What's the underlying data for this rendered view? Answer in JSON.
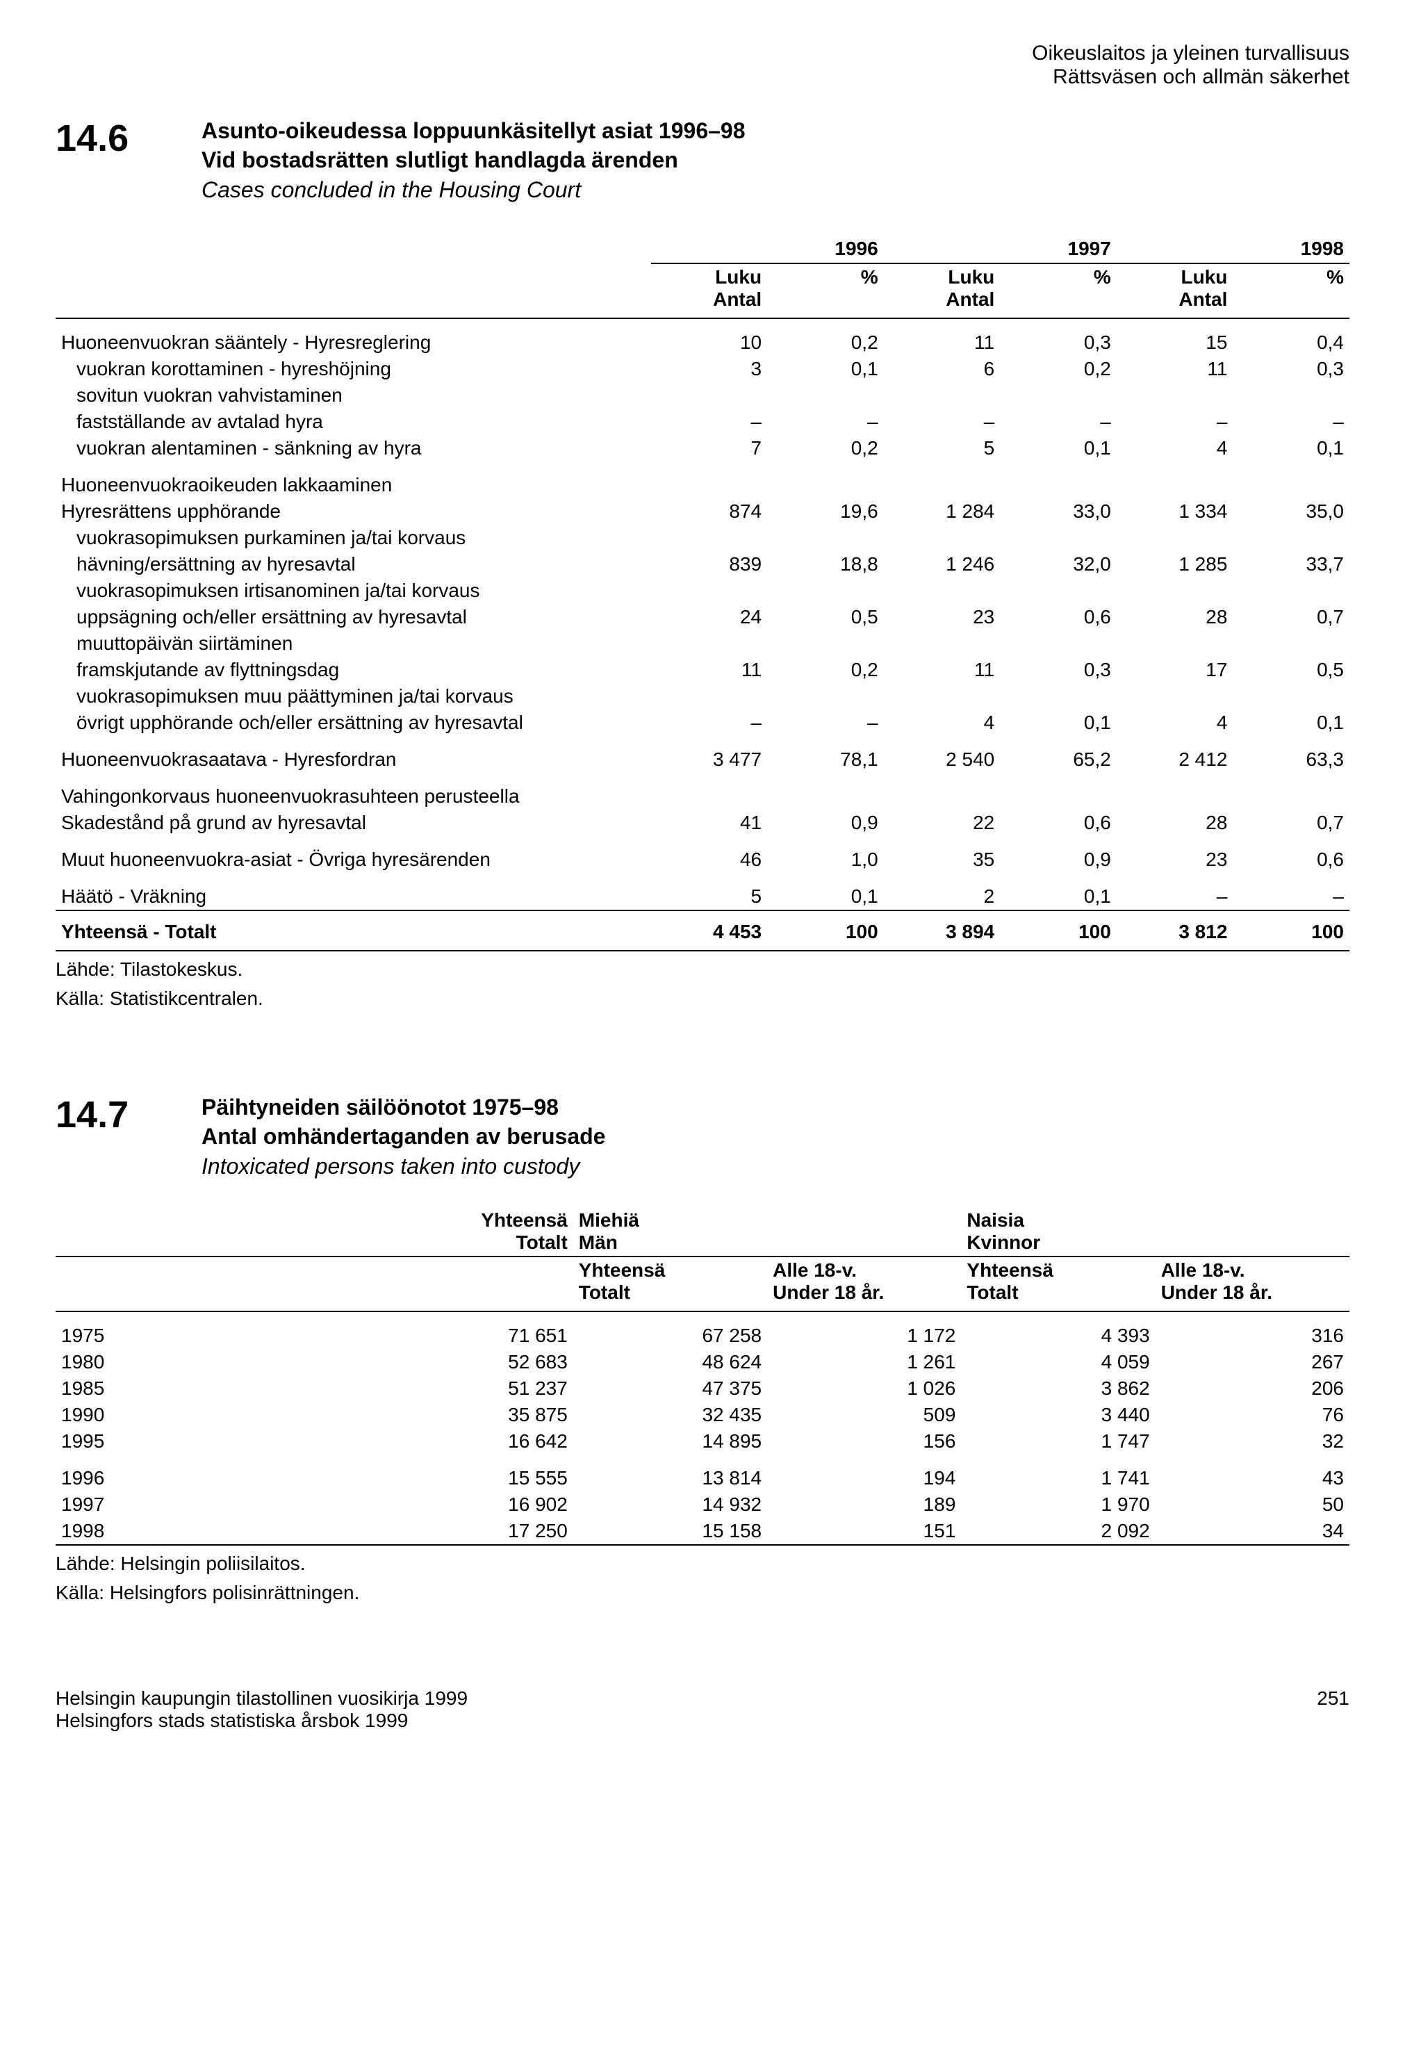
{
  "page_header": {
    "line1": "Oikeuslaitos ja yleinen turvallisuus",
    "line2": "Rättsväsen och allmän säkerhet"
  },
  "section_14_6": {
    "number": "14.6",
    "title_fi": "Asunto-oikeudessa loppuunkäsitellyt asiat 1996–98",
    "title_sv": "Vid bostadsrätten slutligt handlagda ärenden",
    "title_en": "Cases concluded in the Housing Court",
    "years": [
      "1996",
      "1997",
      "1998"
    ],
    "col_luku": "Luku",
    "col_antal": "Antal",
    "col_pct": "%",
    "rows": [
      {
        "label": "Huoneenvuokran sääntely - Hyresreglering",
        "indent": false,
        "v": [
          "10",
          "0,2",
          "11",
          "0,3",
          "15",
          "0,4"
        ],
        "group_top": true
      },
      {
        "label": "vuokran korottaminen - hyreshöjning",
        "indent": true,
        "v": [
          "3",
          "0,1",
          "6",
          "0,2",
          "11",
          "0,3"
        ]
      },
      {
        "label": "sovitun vuokran vahvistaminen",
        "indent": true,
        "v": [
          "",
          "",
          "",
          "",
          "",
          ""
        ]
      },
      {
        "label": "fastställande av avtalad hyra",
        "indent": true,
        "v": [
          "–",
          "–",
          "–",
          "–",
          "–",
          "–"
        ]
      },
      {
        "label": "vuokran alentaminen - sänkning av hyra",
        "indent": true,
        "v": [
          "7",
          "0,2",
          "5",
          "0,1",
          "4",
          "0,1"
        ]
      },
      {
        "label": "Huoneenvuokraoikeuden lakkaaminen",
        "indent": false,
        "v": [
          "",
          "",
          "",
          "",
          "",
          ""
        ],
        "group_top": true
      },
      {
        "label": "Hyresrättens upphörande",
        "indent": false,
        "v": [
          "874",
          "19,6",
          "1 284",
          "33,0",
          "1 334",
          "35,0"
        ]
      },
      {
        "label": "vuokrasopimuksen purkaminen ja/tai korvaus",
        "indent": true,
        "v": [
          "",
          "",
          "",
          "",
          "",
          ""
        ]
      },
      {
        "label": "hävning/ersättning av hyresavtal",
        "indent": true,
        "v": [
          "839",
          "18,8",
          "1 246",
          "32,0",
          "1 285",
          "33,7"
        ]
      },
      {
        "label": "vuokrasopimuksen irtisanominen ja/tai korvaus",
        "indent": true,
        "v": [
          "",
          "",
          "",
          "",
          "",
          ""
        ]
      },
      {
        "label": "uppsägning och/eller ersättning av hyresavtal",
        "indent": true,
        "v": [
          "24",
          "0,5",
          "23",
          "0,6",
          "28",
          "0,7"
        ]
      },
      {
        "label": "muuttopäivän siirtäminen",
        "indent": true,
        "v": [
          "",
          "",
          "",
          "",
          "",
          ""
        ]
      },
      {
        "label": "framskjutande av flyttningsdag",
        "indent": true,
        "v": [
          "11",
          "0,2",
          "11",
          "0,3",
          "17",
          "0,5"
        ]
      },
      {
        "label": "vuokrasopimuksen muu päättyminen ja/tai korvaus",
        "indent": true,
        "v": [
          "",
          "",
          "",
          "",
          "",
          ""
        ]
      },
      {
        "label": "övrigt upphörande och/eller ersättning av hyresavtal",
        "indent": true,
        "v": [
          "–",
          "–",
          "4",
          "0,1",
          "4",
          "0,1"
        ]
      },
      {
        "label": "Huoneenvuokrasaatava - Hyresfordran",
        "indent": false,
        "v": [
          "3 477",
          "78,1",
          "2 540",
          "65,2",
          "2 412",
          "63,3"
        ],
        "group_top": true
      },
      {
        "label": "Vahingonkorvaus huoneenvuokrasuhteen perusteella",
        "indent": false,
        "v": [
          "",
          "",
          "",
          "",
          "",
          ""
        ],
        "group_top": true
      },
      {
        "label": "Skadestånd på grund av hyresavtal",
        "indent": false,
        "v": [
          "41",
          "0,9",
          "22",
          "0,6",
          "28",
          "0,7"
        ]
      },
      {
        "label": "Muut huoneenvuokra-asiat - Övriga hyresärenden",
        "indent": false,
        "v": [
          "46",
          "1,0",
          "35",
          "0,9",
          "23",
          "0,6"
        ],
        "group_top": true
      },
      {
        "label": "Häätö - Vräkning",
        "indent": false,
        "v": [
          "5",
          "0,1",
          "2",
          "0,1",
          "–",
          "–"
        ],
        "group_top": true
      }
    ],
    "total_row": {
      "label": "Yhteensä - Totalt",
      "v": [
        "4 453",
        "100",
        "3 894",
        "100",
        "3 812",
        "100"
      ]
    },
    "source1": "Lähde: Tilastokeskus.",
    "source2": "Källa: Statistikcentralen."
  },
  "section_14_7": {
    "number": "14.7",
    "title_fi": "Päihtyneiden säilöönotot 1975–98",
    "title_sv": "Antal omhändertaganden av berusade",
    "title_en": "Intoxicated persons taken into custody",
    "col_yhteensa": "Yhteensä",
    "col_totalt": "Totalt",
    "col_miehia": "Miehiä",
    "col_man": "Män",
    "col_naisia": "Naisia",
    "col_kvinnor": "Kvinnor",
    "col_alle18": "Alle 18-v.",
    "col_under18": "Under 18 år.",
    "rows1": [
      {
        "year": "1975",
        "v": [
          "71 651",
          "67 258",
          "1 172",
          "4 393",
          "316"
        ]
      },
      {
        "year": "1980",
        "v": [
          "52 683",
          "48 624",
          "1 261",
          "4 059",
          "267"
        ]
      },
      {
        "year": "1985",
        "v": [
          "51 237",
          "47 375",
          "1 026",
          "3 862",
          "206"
        ]
      },
      {
        "year": "1990",
        "v": [
          "35 875",
          "32 435",
          "509",
          "3 440",
          "76"
        ]
      },
      {
        "year": "1995",
        "v": [
          "16 642",
          "14 895",
          "156",
          "1 747",
          "32"
        ]
      }
    ],
    "rows2": [
      {
        "year": "1996",
        "v": [
          "15 555",
          "13 814",
          "194",
          "1 741",
          "43"
        ]
      },
      {
        "year": "1997",
        "v": [
          "16 902",
          "14 932",
          "189",
          "1 970",
          "50"
        ]
      },
      {
        "year": "1998",
        "v": [
          "17 250",
          "15 158",
          "151",
          "2 092",
          "34"
        ]
      }
    ],
    "source1": "Lähde: Helsingin poliisilaitos.",
    "source2": "Källa: Helsingfors polisinrättningen."
  },
  "footer": {
    "line1": "Helsingin kaupungin tilastollinen vuosikirja 1999",
    "line2": "Helsingfors stads statistiska årsbok 1999",
    "page": "251"
  }
}
